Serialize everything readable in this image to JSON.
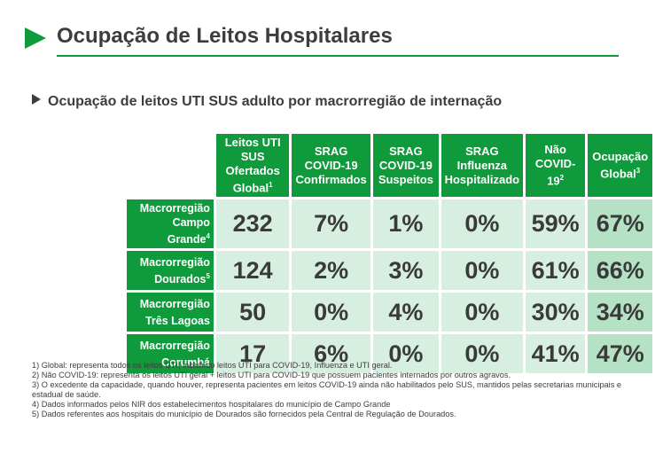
{
  "header": {
    "title": "Ocupação de Leitos Hospitalares"
  },
  "section": {
    "subtitle": "Ocupação de leitos UTI SUS adulto por macrorregião de internação"
  },
  "table": {
    "columns": [
      {
        "label": "Leitos UTI SUS Ofertados Global",
        "sup": "1"
      },
      {
        "label": "SRAG COVID-19 Confirmados",
        "sup": ""
      },
      {
        "label": "SRAG COVID-19 Suspeitos",
        "sup": ""
      },
      {
        "label": "SRAG Influenza Hospitalizado",
        "sup": ""
      },
      {
        "label": "Não COVID-19",
        "sup": "2"
      },
      {
        "label": "Ocupação Global",
        "sup": "3"
      }
    ],
    "rows": [
      {
        "label_line1": "Macrorregião",
        "label_line2": "Campo Grande",
        "sup": "4",
        "values": [
          "232",
          "7%",
          "1%",
          "0%",
          "59%",
          "67%"
        ]
      },
      {
        "label_line1": "Macrorregião",
        "label_line2": "Dourados",
        "sup": "5",
        "values": [
          "124",
          "2%",
          "3%",
          "0%",
          "61%",
          "66%"
        ]
      },
      {
        "label_line1": "Macrorregião",
        "label_line2": "Três Lagoas",
        "sup": "",
        "values": [
          "50",
          "0%",
          "4%",
          "0%",
          "30%",
          "34%"
        ]
      },
      {
        "label_line1": "Macrorregião",
        "label_line2": "Corumbá",
        "sup": "",
        "values": [
          "17",
          "6%",
          "0%",
          "0%",
          "41%",
          "47%"
        ]
      }
    ]
  },
  "footnotes": [
    "1) Global: representa todos os leitos UTI, incluindo leitos UTI para COVID-19, Influenza e UTI geral.",
    "2) Não COVID-19: representa os leitos UTI geral + leitos UTI para COVID-19 que possuem pacientes internados por outros agravos.",
    "3) O excedente da capacidade, quando houver, representa pacientes em leitos COVID-19 ainda não habilitados pelo SUS, mantidos pelas secretarias municipais e estadual de saúde.",
    "4) Dados informados pelos NIR dos estabelecimentos hospitalares do município de Campo Grande",
    "5) Dados referentes aos hospitais do município de Dourados são fornecidos pela Central de Regulação de Dourados."
  ],
  "colors": {
    "accent": "#0f9a3c",
    "cell": "#d7efe0",
    "cell_global": "#b5e2c4"
  },
  "icons": {
    "title_marker": "green-triangle-icon",
    "subtitle_marker": "triangle-bullet-icon"
  }
}
